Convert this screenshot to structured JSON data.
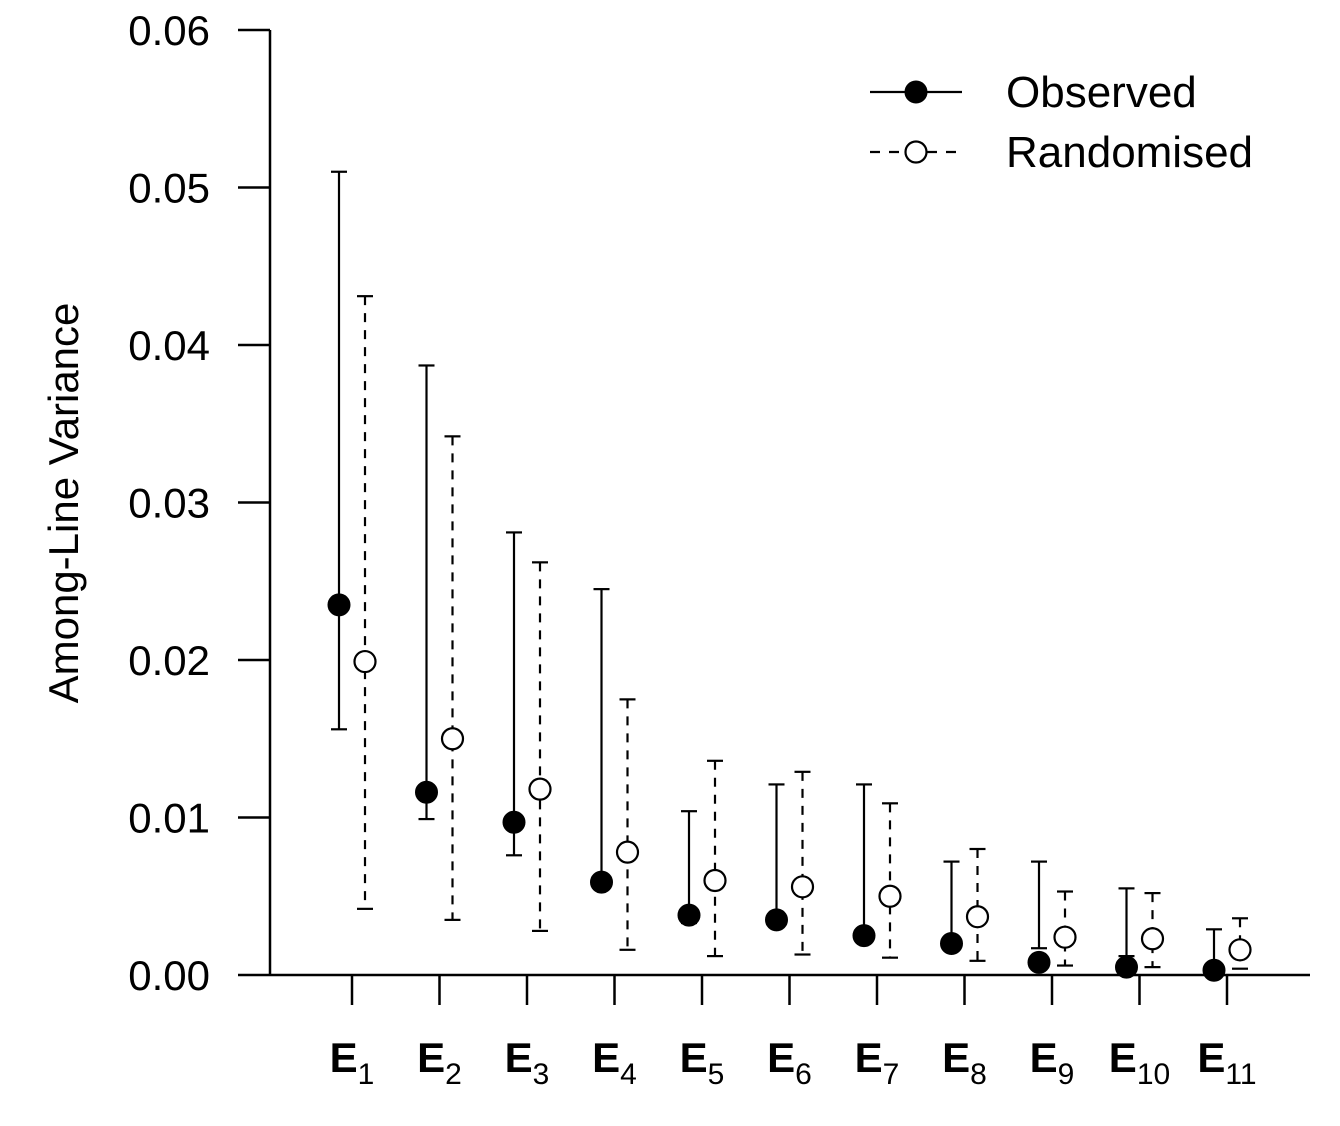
{
  "chart_data": {
    "type": "scatter",
    "title": "",
    "xlabel": "",
    "ylabel": "Among-Line Variance",
    "ylim": [
      0,
      0.06
    ],
    "y_ticks": [
      "0.00",
      "0.01",
      "0.02",
      "0.03",
      "0.04",
      "0.05",
      "0.06"
    ],
    "categories": [
      {
        "base": "E",
        "sub": "1"
      },
      {
        "base": "E",
        "sub": "2"
      },
      {
        "base": "E",
        "sub": "3"
      },
      {
        "base": "E",
        "sub": "4"
      },
      {
        "base": "E",
        "sub": "5"
      },
      {
        "base": "E",
        "sub": "6"
      },
      {
        "base": "E",
        "sub": "7"
      },
      {
        "base": "E",
        "sub": "8"
      },
      {
        "base": "E",
        "sub": "9"
      },
      {
        "base": "E",
        "sub": "10"
      },
      {
        "base": "E",
        "sub": "11"
      }
    ],
    "legend_position": "top-right",
    "grid": false,
    "series": [
      {
        "name": "Observed",
        "marker": "filled-circle",
        "line": "solid",
        "values": [
          0.0235,
          0.0116,
          0.0097,
          0.0059,
          0.0038,
          0.0035,
          0.0025,
          0.002,
          0.0008,
          0.0005,
          0.0003
        ],
        "upper": [
          0.051,
          0.0387,
          0.0281,
          0.0245,
          0.0104,
          0.0121,
          0.0121,
          0.0072,
          0.0072,
          0.0055,
          0.0029
        ],
        "lower": [
          0.0156,
          0.0099,
          0.0076,
          0.0059,
          0.0033,
          0.0035,
          0.0025,
          0.002,
          0.0017,
          0.0012,
          0.0003
        ]
      },
      {
        "name": "Randomised",
        "marker": "open-circle",
        "line": "dashed",
        "values": [
          0.0199,
          0.015,
          0.0118,
          0.0078,
          0.006,
          0.0056,
          0.005,
          0.0037,
          0.0024,
          0.0023,
          0.0016
        ],
        "upper": [
          0.0431,
          0.0342,
          0.0262,
          0.0175,
          0.0136,
          0.0129,
          0.0109,
          0.008,
          0.0053,
          0.0052,
          0.0036
        ],
        "lower": [
          0.0042,
          0.0035,
          0.0028,
          0.0016,
          0.0012,
          0.0013,
          0.0011,
          0.0009,
          0.0006,
          0.0005,
          0.0004
        ]
      }
    ]
  }
}
